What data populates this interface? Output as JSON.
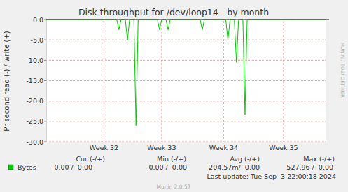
{
  "chart_data": {
    "type": "line",
    "title": "Disk throughput for /dev/loop14 - by month",
    "y_label": "Pr second read (-) / write (+)",
    "categories": [
      null,
      null,
      null,
      null,
      null,
      null,
      null,
      null,
      null,
      null,
      null,
      null,
      null,
      null,
      null,
      null,
      null,
      null,
      null,
      null,
      null,
      null,
      null,
      null,
      null,
      null,
      null,
      "Week 32",
      null,
      null,
      null,
      null,
      null,
      null,
      null,
      null,
      null,
      null,
      null,
      null,
      null,
      null,
      null,
      null,
      null,
      null,
      null,
      null,
      null,
      null,
      null,
      null,
      null,
      null,
      "Week 33",
      null,
      null,
      null,
      null,
      null,
      null,
      null,
      null,
      null,
      null,
      null,
      null,
      null,
      null,
      null,
      null,
      null,
      null,
      null,
      null,
      null,
      null,
      null,
      null,
      null,
      null,
      null,
      null,
      "Week 34",
      null,
      null,
      null,
      null,
      null,
      null,
      null,
      null,
      null,
      null,
      null,
      null,
      null,
      null,
      null,
      null,
      null,
      null,
      null,
      null,
      null,
      null,
      null,
      null,
      null,
      null,
      null,
      "Week 35",
      null,
      null,
      null,
      null,
      null,
      null,
      null,
      null,
      null,
      null,
      null,
      null,
      null,
      null,
      null,
      null,
      null,
      null,
      null,
      null
    ],
    "series": [
      {
        "name": "Bytes",
        "color": "#00cc00",
        "values": [
          0,
          0,
          0,
          0,
          0,
          0,
          0,
          0,
          0,
          0,
          0,
          0,
          0,
          0,
          0,
          0,
          0,
          0,
          0,
          0,
          0,
          0,
          0,
          0,
          0,
          0,
          0,
          0,
          0,
          0,
          0,
          0,
          0,
          0,
          -2.5,
          0,
          0,
          0,
          -5,
          0,
          0,
          0,
          -26,
          0,
          0,
          0,
          0,
          0,
          0,
          0,
          0,
          0,
          0,
          -2.5,
          0,
          0,
          0,
          -2.5,
          0,
          0,
          0,
          0,
          0,
          0,
          0,
          0,
          0,
          0,
          0,
          0,
          0,
          0,
          0,
          -2.5,
          0,
          0,
          0,
          0,
          0,
          0,
          0,
          0,
          0,
          0,
          0,
          -5,
          0,
          0,
          0,
          -10.5,
          0,
          0,
          0,
          -23.3,
          0,
          0,
          0,
          0,
          0,
          0,
          0,
          0,
          0,
          0,
          0,
          0,
          0,
          0,
          0,
          0,
          0,
          0,
          0,
          0,
          0,
          0,
          0,
          0,
          0,
          0,
          0,
          0,
          0,
          0,
          0,
          0,
          0,
          0,
          0,
          0,
          0,
          0
        ]
      }
    ],
    "ylim": [
      -30,
      0
    ],
    "yticks": [
      {
        "value": -30,
        "label": "-30.0"
      },
      {
        "value": -25,
        "label": "-25.0"
      },
      {
        "value": -20,
        "label": "-20.0"
      },
      {
        "value": -15,
        "label": "-15.0"
      },
      {
        "value": -10,
        "label": "-10.0"
      },
      {
        "value": -5,
        "label": "-5.0"
      },
      {
        "value": 0,
        "label": "0.0"
      }
    ],
    "grid": true,
    "stats": {
      "headers": [
        "Cur (-/+)",
        "Min (-/+)",
        "Avg (-/+)",
        "Max (-/+)"
      ],
      "values": [
        "0.00 /  0.00",
        "0.00 /  0.00",
        "204.57m/  0.00",
        "527.96 /  0.00"
      ]
    },
    "last_update": "Last update: Tue Sep  3 22:00:18 2024",
    "footer": "Munin 2.0.57",
    "watermark": "MUNIN / TOBI OETIKER"
  }
}
